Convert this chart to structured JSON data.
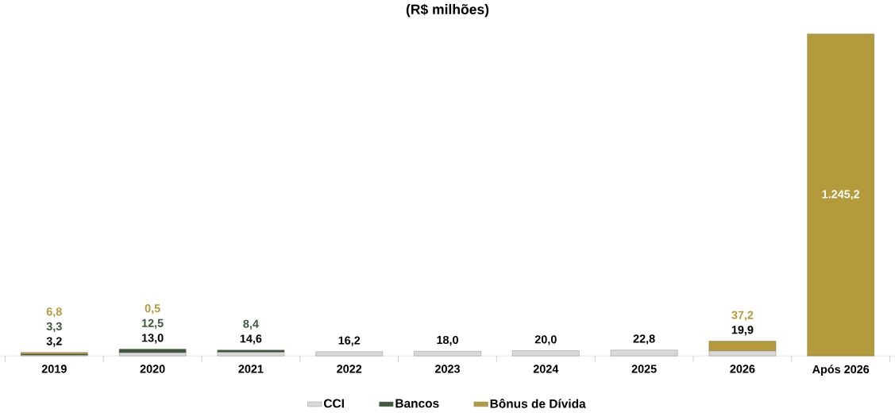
{
  "chart_data": {
    "type": "bar",
    "stacked": true,
    "title": "(R$ milhões)",
    "legend": "bottom",
    "categories": [
      "2019",
      "2020",
      "2021",
      "2022",
      "2023",
      "2024",
      "2025",
      "2026",
      "Após 2026"
    ],
    "series": [
      {
        "name": "CCI",
        "color": "#d9d9d9",
        "values": [
          3.2,
          13.0,
          14.6,
          16.2,
          18.0,
          20.0,
          22.8,
          19.9,
          null
        ],
        "value_labels": [
          "3,2",
          "13,0",
          "14,6",
          "16,2",
          "18,0",
          "20,0",
          "22,8",
          "19,9",
          null
        ]
      },
      {
        "name": "Bancos",
        "color": "#3d5a3d",
        "values": [
          3.3,
          12.5,
          8.4,
          null,
          null,
          null,
          null,
          null,
          null
        ],
        "value_labels": [
          "3,3",
          "12,5",
          "8,4",
          null,
          null,
          null,
          null,
          null,
          null
        ]
      },
      {
        "name": "Bônus de Dívida",
        "color": "#b39b3c",
        "values": [
          6.8,
          0.5,
          null,
          null,
          null,
          null,
          null,
          37.2,
          1245.2
        ],
        "value_labels": [
          "6,8",
          "0,5",
          null,
          null,
          null,
          null,
          null,
          "37,2",
          "1.245,2"
        ]
      }
    ]
  }
}
